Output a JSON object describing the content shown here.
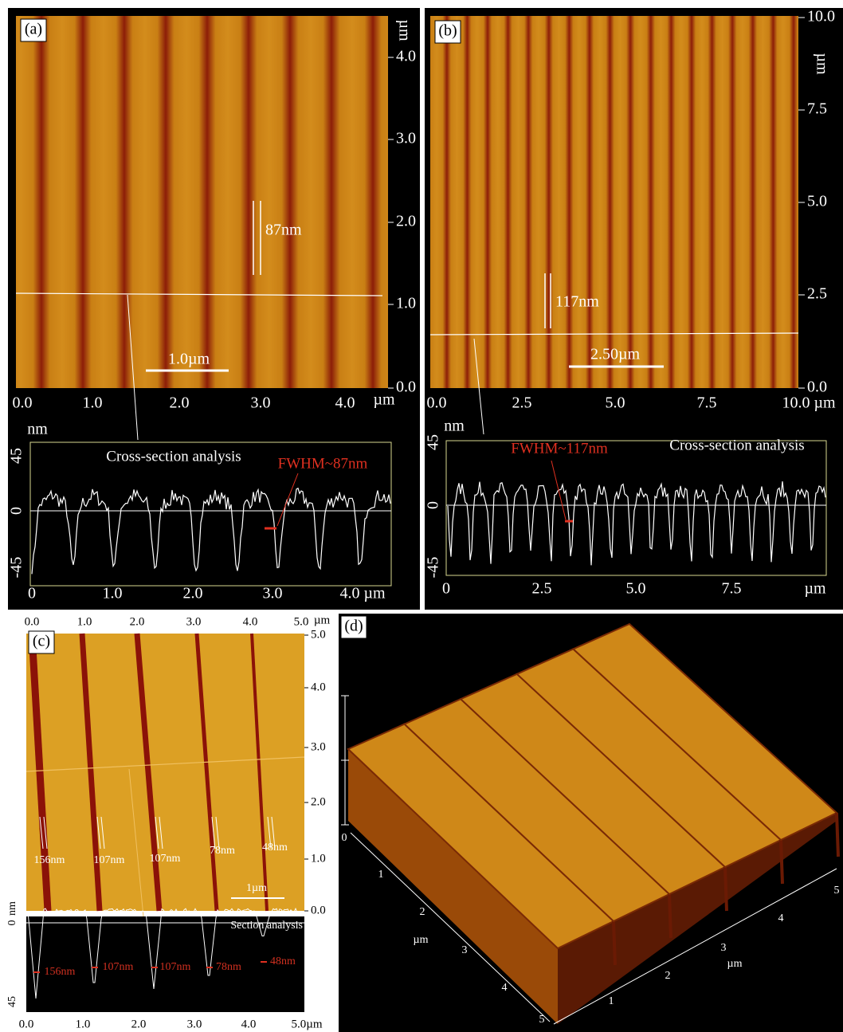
{
  "panels": {
    "a": {
      "label": "(a)",
      "axis_unit": "µm",
      "right_ticks": [
        "4.0",
        "3.0",
        "2.0",
        "1.0",
        "0.0"
      ],
      "bottom_ticks": [
        "0.0",
        "1.0",
        "2.0",
        "3.0",
        "4.0"
      ],
      "bottom_unit": "µm",
      "marker": "87nm",
      "scale_bar": "1.0µm",
      "profile": {
        "title": "Cross-section analysis",
        "y_unit": "nm",
        "y_ticks": [
          "45",
          "0",
          "-45"
        ],
        "x_ticks": [
          "0",
          "1.0",
          "2.0",
          "3.0",
          "4.0 µm"
        ],
        "annotation": "FWHM~87nm"
      }
    },
    "b": {
      "label": "(b)",
      "axis_unit": "µm",
      "right_ticks": [
        "10.0",
        "7.5",
        "5.0",
        "2.5",
        "0.0"
      ],
      "bottom_ticks": [
        "0.0",
        "2.5",
        "5.0",
        "7.5",
        "10.0 µm"
      ],
      "marker": "117nm",
      "scale_bar": "2.50µm",
      "profile": {
        "title": "Cross-section analysis",
        "y_unit": "nm",
        "y_ticks": [
          "45",
          "0",
          "-45"
        ],
        "x_ticks": [
          "0",
          "2.5",
          "5.0",
          "7.5",
          "µm"
        ],
        "annotation": "FWHM~117nm"
      }
    },
    "c": {
      "label": "(c)",
      "top_ticks": [
        "0.0",
        "1.0",
        "2.0",
        "3.0",
        "4.0",
        "5.0"
      ],
      "top_unit": "µm",
      "right_ticks": [
        "5.0",
        "4.0",
        "3.0",
        "2.0",
        "1.0",
        "0.0"
      ],
      "markers": [
        "156nm",
        "107nm",
        "107nm",
        "78nm",
        "48nm"
      ],
      "scale_bar": "1µm",
      "profile": {
        "title": "Section analysis",
        "y_unit": "nm",
        "y_ticks": [
          "0",
          "45"
        ],
        "x_ticks": [
          "0.0",
          "1.0",
          "2.0",
          "3.0",
          "4.0",
          "5.0µm"
        ],
        "markers": [
          "156nm",
          "107nm",
          "107nm",
          "78nm",
          "48nm"
        ]
      }
    },
    "d": {
      "label": "(d)",
      "z_tick": "0",
      "left_ticks": [
        "1",
        "2",
        "3",
        "4",
        "5"
      ],
      "left_unit": "µm",
      "right_ticks": [
        "1",
        "2",
        "3",
        "4",
        "5"
      ],
      "right_unit": "µm"
    }
  }
}
